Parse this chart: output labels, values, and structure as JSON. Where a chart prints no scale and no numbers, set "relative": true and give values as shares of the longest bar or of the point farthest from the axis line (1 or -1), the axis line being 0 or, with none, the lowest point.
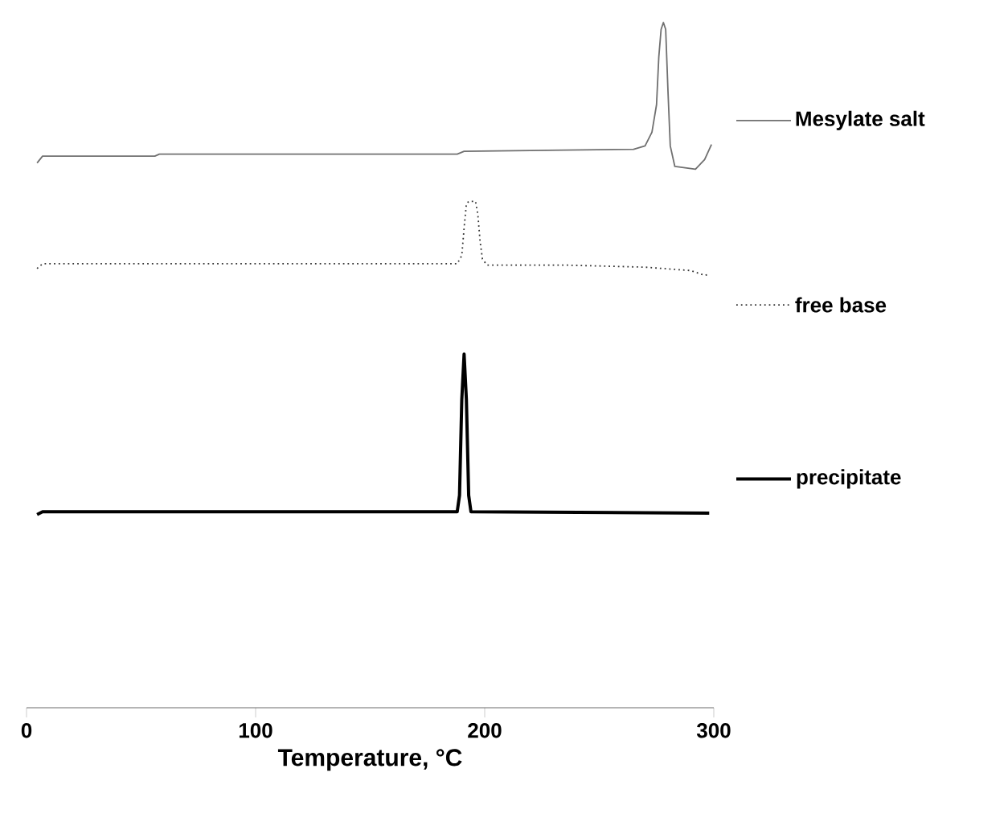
{
  "chart_data": {
    "type": "line",
    "relative": true,
    "xlabel": "Temperature, °C",
    "xlim": [
      0,
      300
    ],
    "xticks": [
      0,
      100,
      200,
      300
    ],
    "legend": "right",
    "grid": false,
    "marker": "none",
    "series": [
      {
        "name": "Mesylate salt",
        "color": "#707070",
        "line_style": "solid",
        "x": [
          4.6,
          7,
          56,
          58,
          188,
          191,
          265,
          270,
          273,
          275,
          276,
          277,
          278,
          279,
          280,
          281,
          283,
          292,
          296,
          299
        ],
        "values": [
          0.795,
          0.805,
          0.805,
          0.808,
          0.808,
          0.812,
          0.815,
          0.82,
          0.84,
          0.88,
          0.95,
          0.99,
          1.0,
          0.99,
          0.9,
          0.82,
          0.79,
          0.786,
          0.8,
          0.822
        ]
      },
      {
        "name": "free base",
        "color": "#333333",
        "line_style": "dotted",
        "x": [
          4.6,
          7,
          188,
          190,
          191,
          192,
          193,
          196,
          197,
          198,
          199,
          201,
          235,
          270,
          290,
          296,
          298
        ],
        "values": [
          0.641,
          0.648,
          0.648,
          0.66,
          0.7,
          0.735,
          0.739,
          0.739,
          0.72,
          0.68,
          0.655,
          0.646,
          0.646,
          0.643,
          0.638,
          0.631,
          0.633
        ]
      },
      {
        "name": "precipitate",
        "color": "#000000",
        "line_style": "solid",
        "x": [
          4.6,
          7,
          188,
          189,
          190,
          191,
          192,
          193,
          194,
          298
        ],
        "values": [
          0.282,
          0.286,
          0.286,
          0.31,
          0.45,
          0.516,
          0.45,
          0.31,
          0.286,
          0.284
        ]
      }
    ]
  }
}
